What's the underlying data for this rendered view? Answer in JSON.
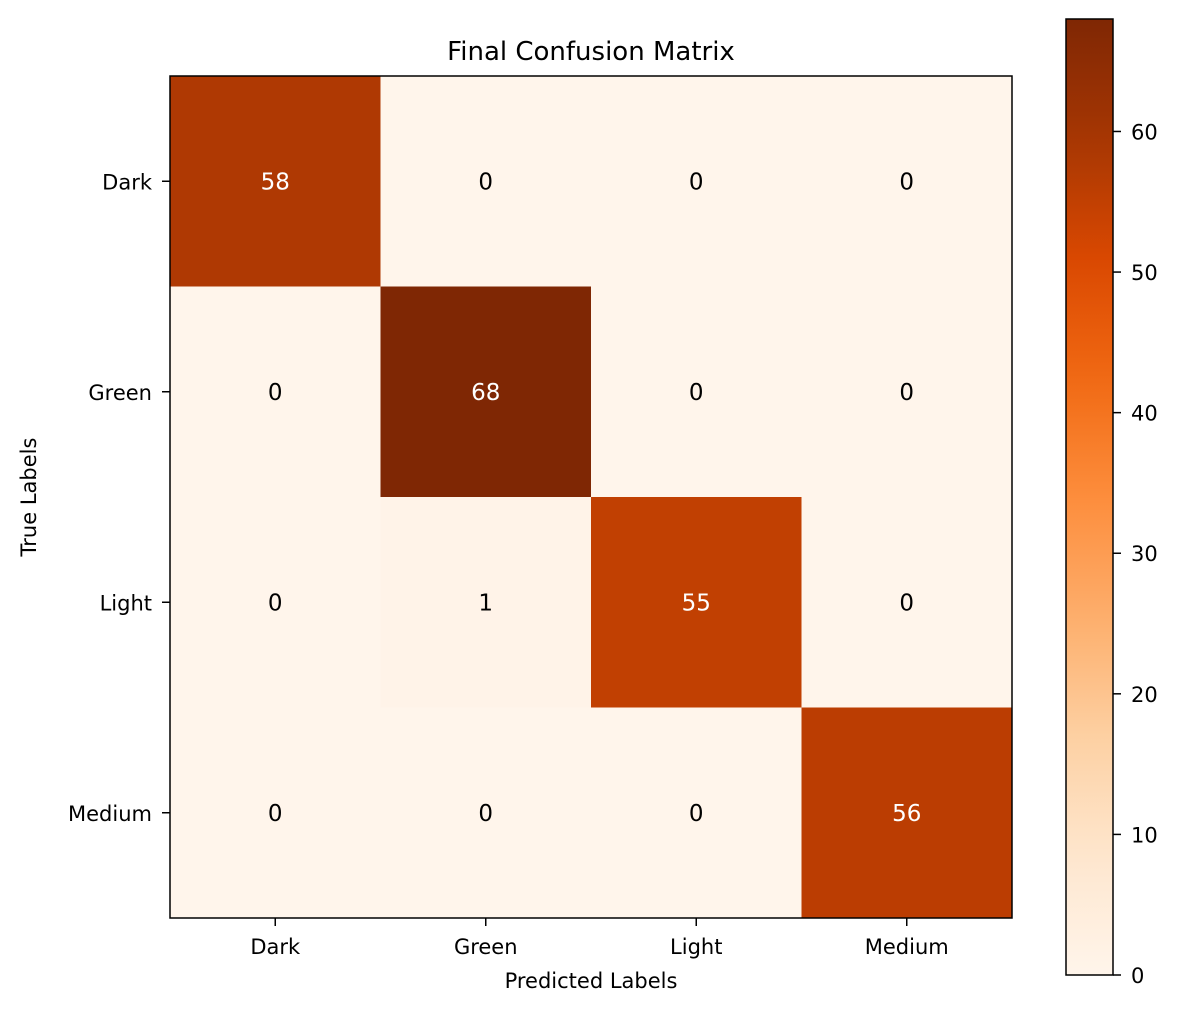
{
  "chart_data": {
    "type": "heatmap",
    "title": "Final Confusion Matrix",
    "xlabel": "Predicted Labels",
    "ylabel": "True Labels",
    "x_categories": [
      "Dark",
      "Green",
      "Light",
      "Medium"
    ],
    "y_categories": [
      "Dark",
      "Green",
      "Light",
      "Medium"
    ],
    "values": [
      [
        58,
        0,
        0,
        0
      ],
      [
        0,
        68,
        0,
        0
      ],
      [
        0,
        1,
        55,
        0
      ],
      [
        0,
        0,
        0,
        56
      ]
    ],
    "colormap": "Oranges",
    "color_range": [
      0,
      68
    ],
    "colorbar_ticks": [
      "0",
      "10",
      "20",
      "30",
      "40",
      "50",
      "60"
    ],
    "grid": false,
    "colorbar_position": "right"
  }
}
